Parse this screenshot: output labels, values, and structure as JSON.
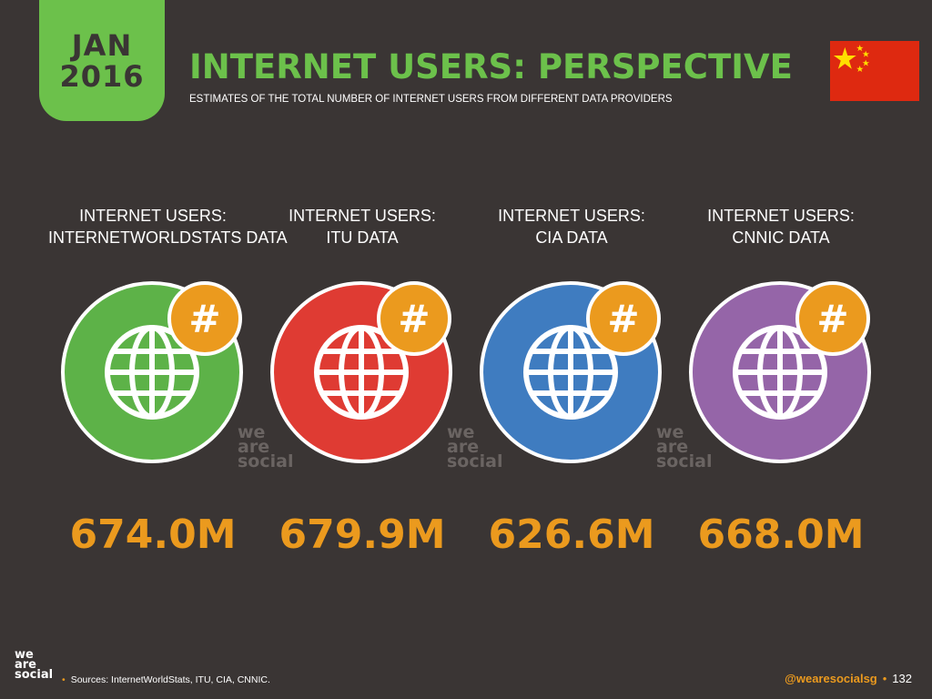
{
  "header": {
    "month": "JAN",
    "year": "2016",
    "title": "INTERNET USERS: PERSPECTIVE",
    "subtitle": "ESTIMATES OF THE TOTAL NUMBER OF INTERNET USERS FROM DIFFERENT DATA PROVIDERS",
    "flag_icon": "china-flag-icon"
  },
  "colors": {
    "accent_green": "#6cc14b",
    "accent_orange": "#eb9a1e",
    "background": "#3a3534",
    "flag_red": "#de2910",
    "flag_yellow": "#ffde00"
  },
  "cards": [
    {
      "label_line1": "INTERNET USERS:",
      "label_line2": "INTERNETWORLDSTATS DATA",
      "value": "674.0M",
      "color": "#5db248",
      "icon": "globe-icon",
      "badge_icon": "hashtag-icon",
      "badge": "#"
    },
    {
      "label_line1": "INTERNET USERS:",
      "label_line2": "ITU DATA",
      "value": "679.9M",
      "color": "#df3b33",
      "icon": "globe-icon",
      "badge_icon": "hashtag-icon",
      "badge": "#"
    },
    {
      "label_line1": "INTERNET USERS:",
      "label_line2": "CIA DATA",
      "value": "626.6M",
      "color": "#3f7cc0",
      "icon": "globe-icon",
      "badge_icon": "hashtag-icon",
      "badge": "#"
    },
    {
      "label_line1": "INTERNET USERS:",
      "label_line2": "CNNIC DATA",
      "value": "668.0M",
      "color": "#9565a8",
      "icon": "globe-icon",
      "badge_icon": "hashtag-icon",
      "badge": "#"
    }
  ],
  "watermark": {
    "line1": "we",
    "line2": "are",
    "line3": "social"
  },
  "footer": {
    "logo_line1": "we",
    "logo_line2": "are",
    "logo_line3": "social",
    "bullet": "•",
    "sources": "Sources: InternetWorldStats, ITU, CIA, CNNIC.",
    "handle": "@wearesocialsg",
    "page_number": "132"
  }
}
